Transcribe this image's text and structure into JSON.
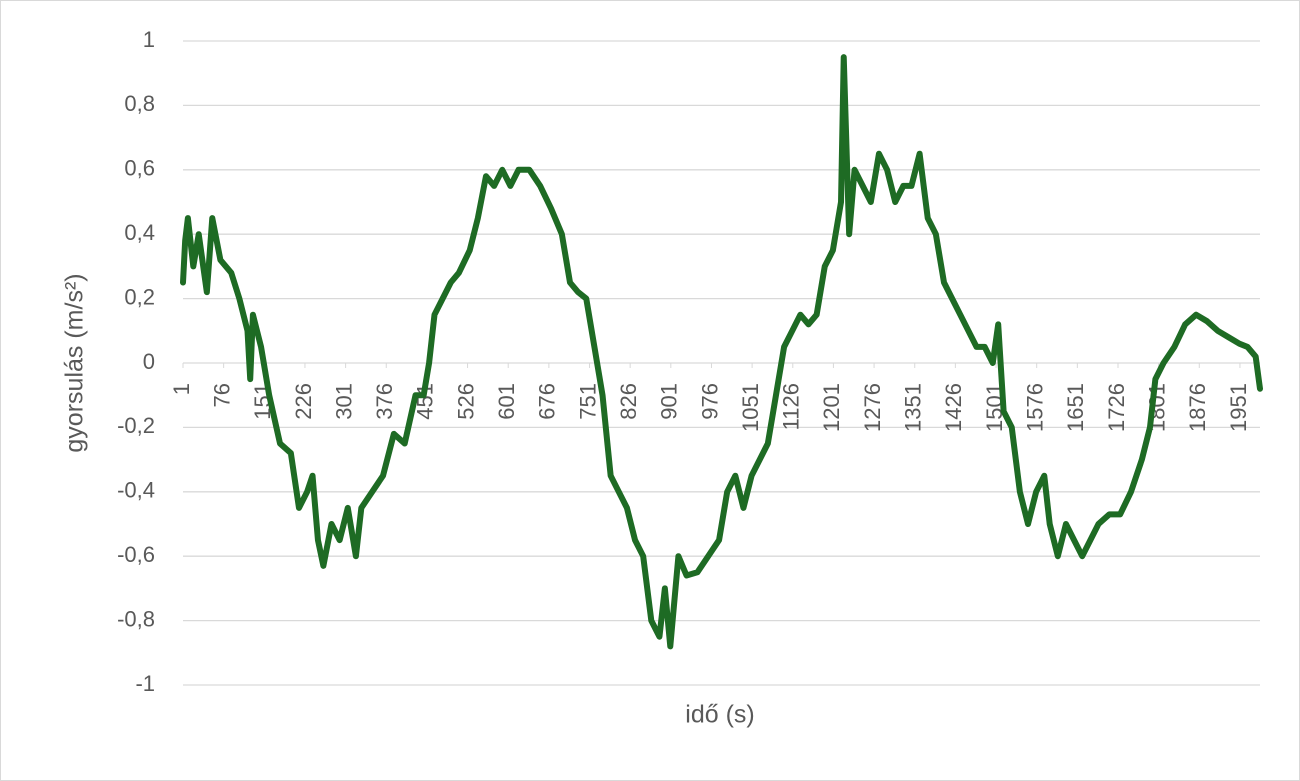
{
  "chart_data": {
    "type": "line",
    "x_label": "idő (s)",
    "y_label": "gyorsulás (m/s²)",
    "x": [
      1,
      5,
      10,
      20,
      30,
      45,
      55,
      70,
      90,
      105,
      120,
      125,
      130,
      145,
      160,
      180,
      200,
      215,
      230,
      240,
      250,
      260,
      275,
      290,
      305,
      320,
      330,
      350,
      370,
      390,
      410,
      430,
      445,
      455,
      465,
      480,
      495,
      510,
      530,
      545,
      560,
      575,
      590,
      605,
      620,
      640,
      660,
      680,
      700,
      715,
      730,
      745,
      760,
      775,
      790,
      805,
      820,
      835,
      850,
      865,
      880,
      890,
      900,
      915,
      930,
      950,
      970,
      990,
      1005,
      1020,
      1035,
      1050,
      1065,
      1080,
      1095,
      1110,
      1125,
      1140,
      1155,
      1170,
      1185,
      1200,
      1215,
      1220,
      1230,
      1240,
      1255,
      1270,
      1285,
      1300,
      1315,
      1330,
      1345,
      1360,
      1375,
      1390,
      1405,
      1420,
      1435,
      1450,
      1465,
      1480,
      1495,
      1505,
      1515,
      1530,
      1545,
      1560,
      1575,
      1590,
      1600,
      1615,
      1630,
      1645,
      1660,
      1675,
      1690,
      1710,
      1730,
      1750,
      1770,
      1785,
      1795,
      1810,
      1830,
      1850,
      1870,
      1890,
      1910,
      1930,
      1950,
      1965,
      1980,
      1988
    ],
    "series": [
      {
        "name": "gyorsulás",
        "color": "#1e6b24",
        "values": [
          0.25,
          0.38,
          0.45,
          0.3,
          0.4,
          0.22,
          0.45,
          0.32,
          0.28,
          0.2,
          0.1,
          -0.05,
          0.15,
          0.05,
          -0.1,
          -0.25,
          -0.28,
          -0.45,
          -0.4,
          -0.35,
          -0.55,
          -0.63,
          -0.5,
          -0.55,
          -0.45,
          -0.6,
          -0.45,
          -0.4,
          -0.35,
          -0.22,
          -0.25,
          -0.1,
          -0.1,
          0.0,
          0.15,
          0.2,
          0.25,
          0.28,
          0.35,
          0.45,
          0.58,
          0.55,
          0.6,
          0.55,
          0.6,
          0.6,
          0.55,
          0.48,
          0.4,
          0.25,
          0.22,
          0.2,
          0.05,
          -0.1,
          -0.35,
          -0.4,
          -0.45,
          -0.55,
          -0.6,
          -0.8,
          -0.85,
          -0.7,
          -0.88,
          -0.6,
          -0.66,
          -0.65,
          -0.6,
          -0.55,
          -0.4,
          -0.35,
          -0.45,
          -0.35,
          -0.3,
          -0.25,
          -0.1,
          0.05,
          0.1,
          0.15,
          0.12,
          0.15,
          0.3,
          0.35,
          0.5,
          0.95,
          0.4,
          0.6,
          0.55,
          0.5,
          0.65,
          0.6,
          0.5,
          0.55,
          0.55,
          0.65,
          0.45,
          0.4,
          0.25,
          0.2,
          0.15,
          0.1,
          0.05,
          0.05,
          0.0,
          0.12,
          -0.15,
          -0.2,
          -0.4,
          -0.5,
          -0.4,
          -0.35,
          -0.5,
          -0.6,
          -0.5,
          -0.55,
          -0.6,
          -0.55,
          -0.5,
          -0.47,
          -0.47,
          -0.4,
          -0.3,
          -0.2,
          -0.05,
          0.0,
          0.05,
          0.12,
          0.15,
          0.13,
          0.1,
          0.08,
          0.06,
          0.05,
          0.02,
          -0.08
        ]
      }
    ],
    "xlim": [
      1,
      1988
    ],
    "xticks": [
      1,
      76,
      151,
      226,
      301,
      376,
      451,
      526,
      601,
      676,
      751,
      826,
      901,
      976,
      1051,
      1126,
      1201,
      1276,
      1351,
      1426,
      1501,
      1576,
      1651,
      1726,
      1801,
      1876,
      1951
    ],
    "ylim": [
      -1,
      1
    ],
    "yticks": [
      -1,
      {
        "value": -0.8,
        "label": "-0,8"
      },
      {
        "value": -0.6,
        "label": "-0,6"
      },
      {
        "value": -0.4,
        "label": "-0,4"
      },
      {
        "value": -0.2,
        "label": "-0,2"
      },
      0,
      {
        "value": 0.2,
        "label": "0,2"
      },
      {
        "value": 0.4,
        "label": "0,4"
      },
      {
        "value": 0.6,
        "label": "0,6"
      },
      {
        "value": 0.8,
        "label": "0,8"
      },
      1
    ],
    "grid": true
  }
}
